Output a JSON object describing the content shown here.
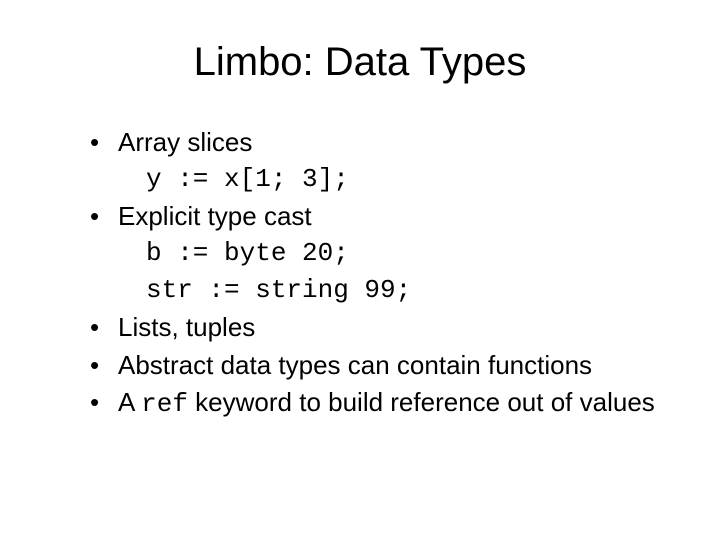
{
  "colors": {
    "background": "#ffffff",
    "text": "#000000"
  },
  "typography": {
    "title_fontsize": 40,
    "body_fontsize": 26,
    "body_font": "Arial",
    "code_font": "Courier New"
  },
  "title": "Limbo: Data Types",
  "bullets": {
    "b1": {
      "text": "Array slices",
      "code": [
        "y := x[1; 3];"
      ]
    },
    "b2": {
      "text": "Explicit type cast",
      "code": [
        "b := byte 20;",
        "str := string 99;"
      ]
    },
    "b3": {
      "text": "Lists, tuples"
    },
    "b4": {
      "text": "Abstract data types can contain functions"
    },
    "b5": {
      "pre": "A ",
      "code_inline": "ref",
      "post": " keyword to build reference out of values"
    }
  }
}
